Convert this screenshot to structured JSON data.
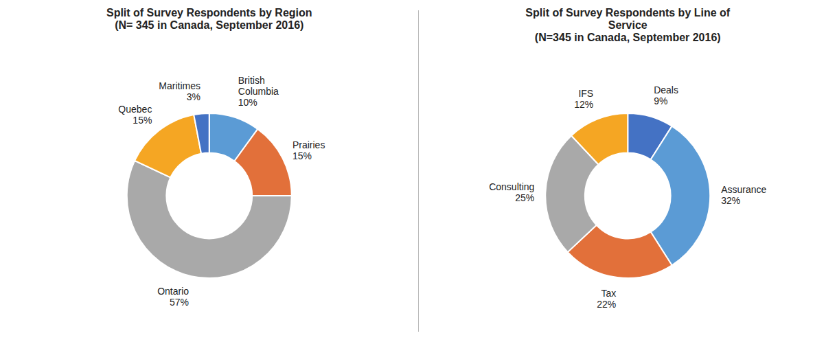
{
  "chart_data": [
    {
      "type": "donut",
      "title": "Split of Survey Respondents by Region\n(N= 345 in Canada, September 2016)",
      "categories": [
        "British\nColumbia",
        "Prairies",
        "Ontario",
        "Quebec",
        "Maritimes"
      ],
      "values": [
        10,
        15,
        57,
        15,
        3
      ],
      "value_labels": [
        "10%",
        "15%",
        "57%",
        "15%",
        "3%"
      ],
      "colors": [
        "#5B9BD5",
        "#E2703A",
        "#A9A9A9",
        "#F5A623",
        "#4472C4"
      ],
      "data_labels": true
    },
    {
      "type": "donut",
      "title": "Split of Survey Respondents by Line of\nService\n(N=345 in Canada, September 2016)",
      "categories": [
        "Deals",
        "Assurance",
        "Tax",
        "Consulting",
        "IFS"
      ],
      "values": [
        9,
        32,
        22,
        25,
        12
      ],
      "value_labels": [
        "9%",
        "32%",
        "22%",
        "25%",
        "12%"
      ],
      "colors": [
        "#4472C4",
        "#5B9BD5",
        "#E2703A",
        "#A9A9A9",
        "#F5A623"
      ],
      "data_labels": true
    }
  ]
}
